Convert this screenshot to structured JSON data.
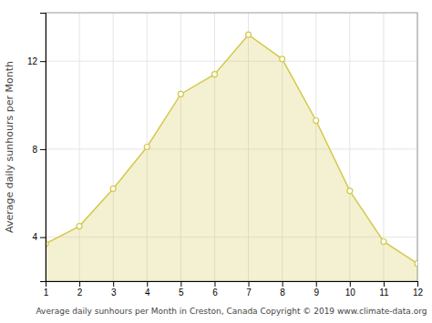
{
  "chart_data": {
    "type": "area",
    "x": [
      1,
      2,
      3,
      4,
      5,
      6,
      7,
      8,
      9,
      10,
      11,
      12
    ],
    "values": [
      3.7,
      4.5,
      6.2,
      8.1,
      10.5,
      11.4,
      13.2,
      12.1,
      9.3,
      6.1,
      3.8,
      2.8
    ],
    "color": "#D4C84A",
    "marker": "circle",
    "xlabel": "Average daily sunhours per Month in Creston, Canada Copyright © 2019 www.climate-data.org",
    "ylabel": "Average daily sunhours per Month",
    "xlim": [
      1,
      12
    ],
    "ylim": [
      2.0,
      14.2
    ],
    "xticks": [
      1,
      2,
      3,
      4,
      5,
      6,
      7,
      8,
      9,
      10,
      11,
      12
    ],
    "yticks": [
      4,
      8,
      12
    ],
    "grid": true
  }
}
